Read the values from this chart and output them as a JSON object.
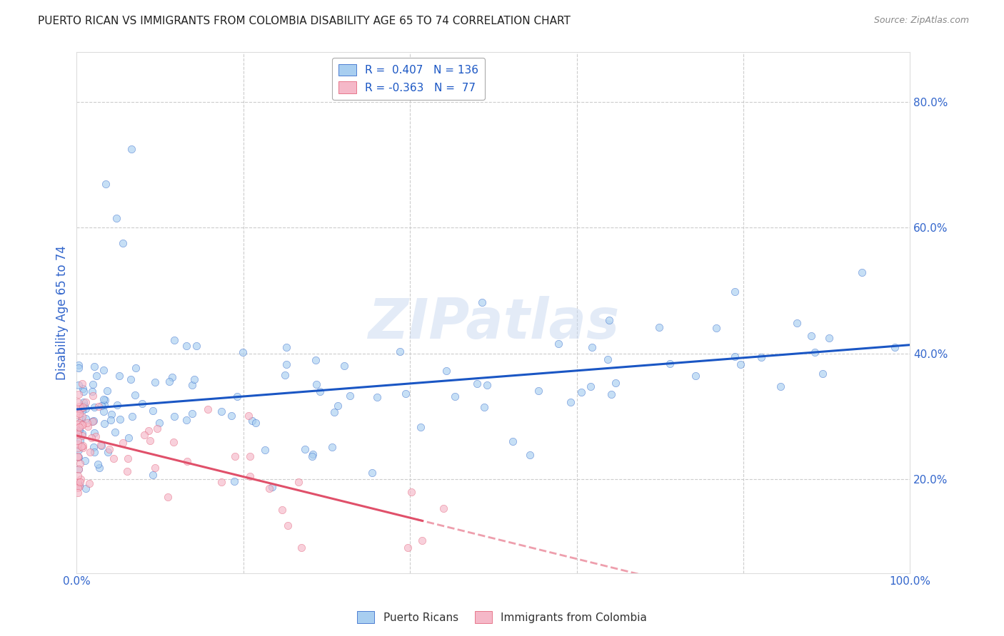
{
  "title": "PUERTO RICAN VS IMMIGRANTS FROM COLOMBIA DISABILITY AGE 65 TO 74 CORRELATION CHART",
  "source": "Source: ZipAtlas.com",
  "ylabel": "Disability Age 65 to 74",
  "x_tick_labels": [
    "0.0%",
    "",
    "",
    "",
    "",
    "100.0%"
  ],
  "x_ticks": [
    0.0,
    0.2,
    0.4,
    0.6,
    0.8,
    1.0
  ],
  "y_tick_labels": [
    "20.0%",
    "40.0%",
    "60.0%",
    "80.0%"
  ],
  "y_ticks": [
    0.2,
    0.4,
    0.6,
    0.8
  ],
  "xlim": [
    0.0,
    1.0
  ],
  "ylim": [
    0.05,
    0.88
  ],
  "blue_R": 0.407,
  "blue_N": 136,
  "pink_R": -0.363,
  "pink_N": 77,
  "blue_color": "#a8cef0",
  "pink_color": "#f5b8c8",
  "blue_line_color": "#1a56c4",
  "pink_line_color": "#e0506a",
  "watermark": "ZIPatlas",
  "background_color": "#ffffff",
  "grid_color": "#cccccc",
  "tick_label_color": "#3366cc",
  "scatter_size": 55,
  "scatter_alpha": 0.65,
  "seed": 42,
  "blue_intercept": 0.295,
  "blue_slope": 0.115,
  "pink_intercept": 0.265,
  "pink_slope": -0.28
}
